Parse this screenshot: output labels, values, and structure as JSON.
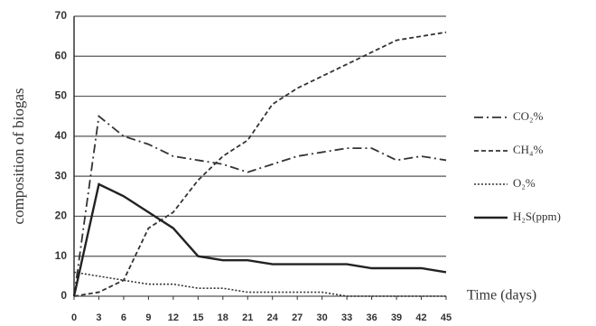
{
  "chart_data": {
    "type": "line",
    "ylabel": "composition of biogas",
    "xlabel": "Time (days)",
    "x": [
      0,
      3,
      6,
      9,
      12,
      15,
      18,
      21,
      24,
      27,
      30,
      33,
      36,
      39,
      42,
      45
    ],
    "xlim": [
      0,
      45
    ],
    "xticks": [
      0,
      3,
      6,
      9,
      12,
      15,
      18,
      21,
      24,
      27,
      30,
      33,
      36,
      39,
      42,
      45
    ],
    "ylim": [
      0,
      70
    ],
    "yticks": [
      0,
      10,
      20,
      30,
      40,
      50,
      60,
      70
    ],
    "grid": true,
    "legend": "right",
    "series": [
      {
        "name": "CO₂%",
        "color": "#333333",
        "dash": "10 4 2 4",
        "width": 1.8,
        "values": [
          0,
          45,
          40,
          38,
          35,
          34,
          33,
          31,
          33,
          35,
          36,
          37,
          37,
          34,
          35,
          34
        ]
      },
      {
        "name": "CH₄%",
        "color": "#333333",
        "dash": "5 3",
        "width": 1.8,
        "values": [
          0,
          1,
          4,
          17,
          21,
          29,
          35,
          39,
          48,
          52,
          55,
          58,
          61,
          64,
          65,
          66
        ]
      },
      {
        "name": "O₂%",
        "color": "#333333",
        "dash": "2 2",
        "width": 1.6,
        "values": [
          6,
          5,
          4,
          3,
          3,
          2,
          2,
          1,
          1,
          1,
          1,
          0,
          0,
          0,
          0,
          0
        ]
      },
      {
        "name": "H₂S(ppm)",
        "color": "#222222",
        "dash": "none",
        "width": 2.4,
        "values": [
          0,
          28,
          25,
          21,
          17,
          10,
          9,
          9,
          8,
          8,
          8,
          8,
          7,
          7,
          7,
          6
        ]
      }
    ]
  }
}
